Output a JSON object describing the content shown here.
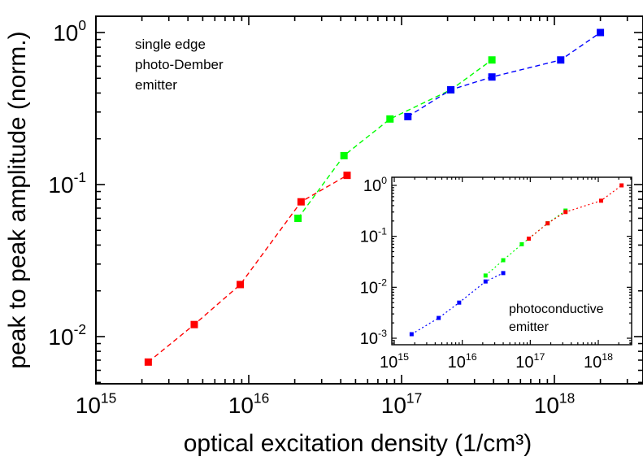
{
  "chart_data": [
    {
      "type": "scatter",
      "title": "",
      "xlabel": "optical excitation density (1/cm³)",
      "ylabel": "peak to peak amplitude (norm.)",
      "xscale": "log",
      "yscale": "log",
      "xlim": [
        1000000000000000.0,
        4e+18
      ],
      "ylim": [
        0.005,
        1.3
      ],
      "x_tick_labels": [
        {
          "base": "10",
          "exp": "15"
        },
        {
          "base": "10",
          "exp": "16"
        },
        {
          "base": "10",
          "exp": "17"
        },
        {
          "base": "10",
          "exp": "18"
        }
      ],
      "y_tick_labels": [
        {
          "base": "10",
          "exp": "-2"
        },
        {
          "base": "10",
          "exp": "-1"
        },
        {
          "base": "10",
          "exp": "0"
        }
      ],
      "annotation": [
        "single edge",
        "photo-Dember",
        "emitter"
      ],
      "line_style": "dashed",
      "marker": "square",
      "grid": false,
      "series": [
        {
          "color": "#ff0000",
          "x": [
            2200000000000000.0,
            4400000000000000.0,
            8800000000000000.0,
            2.2e+16,
            4.4e+16
          ],
          "y": [
            0.0068,
            0.012,
            0.022,
            0.077,
            0.115
          ]
        },
        {
          "color": "#00ff00",
          "x": [
            2.1e+16,
            4.2e+16,
            8.4e+16,
            2.1e+17,
            3.9e+17
          ],
          "y": [
            0.06,
            0.155,
            0.27,
            0.42,
            0.66
          ]
        },
        {
          "color": "#0000ff",
          "x": [
            1.1e+17,
            2.1e+17,
            3.9e+17,
            1.1e+18,
            2e+18
          ],
          "y": [
            0.28,
            0.42,
            0.51,
            0.66,
            1.0
          ]
        }
      ]
    },
    {
      "type": "scatter",
      "title": "",
      "xlabel": "",
      "ylabel": "",
      "xscale": "log",
      "yscale": "log",
      "xlim": [
        1000000000000000.0,
        4e+18
      ],
      "ylim": [
        0.0008,
        1.3
      ],
      "x_tick_labels": [
        {
          "base": "10",
          "exp": "15"
        },
        {
          "base": "10",
          "exp": "16"
        },
        {
          "base": "10",
          "exp": "17"
        },
        {
          "base": "10",
          "exp": "18"
        }
      ],
      "y_tick_labels": [
        {
          "base": "10",
          "exp": "-3"
        },
        {
          "base": "10",
          "exp": "-2"
        },
        {
          "base": "10",
          "exp": "-1"
        },
        {
          "base": "10",
          "exp": "0"
        }
      ],
      "annotation": [
        "photoconductive",
        "emitter"
      ],
      "line_style": "dotted",
      "marker": "square",
      "grid": false,
      "series": [
        {
          "color": "#0000ff",
          "x": [
            1800000000000000.0,
            4500000000000000.0,
            9000000000000000.0,
            2.2e+16,
            4e+16
          ],
          "y": [
            0.0012,
            0.0025,
            0.005,
            0.013,
            0.019
          ]
        },
        {
          "color": "#00ff00",
          "x": [
            2.2e+16,
            4e+16,
            7.5e+16,
            1.8e+17,
            3.3e+17
          ],
          "y": [
            0.017,
            0.034,
            0.07,
            0.18,
            0.32
          ]
        },
        {
          "color": "#ff0000",
          "x": [
            9.5e+16,
            1.8e+17,
            3.3e+17,
            1.1e+18,
            2.2e+18
          ],
          "y": [
            0.09,
            0.18,
            0.3,
            0.5,
            1.0
          ]
        }
      ]
    }
  ]
}
